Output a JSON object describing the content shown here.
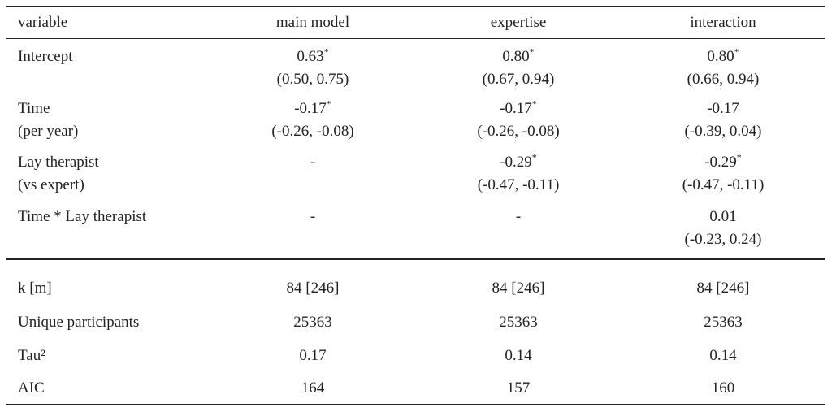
{
  "table": {
    "header": [
      "variable",
      "main model",
      "expertise",
      "interaction"
    ],
    "rows": [
      {
        "label": [
          "Intercept"
        ],
        "cells": [
          [
            "0.63*",
            "(0.50, 0.75)"
          ],
          [
            "0.80*",
            "(0.67, 0.94)"
          ],
          [
            "0.80*",
            "(0.66, 0.94)"
          ]
        ]
      },
      {
        "label": [
          "Time",
          "(per year)"
        ],
        "cells": [
          [
            "-0.17*",
            "(-0.26, -0.08)"
          ],
          [
            "-0.17*",
            "(-0.26, -0.08)"
          ],
          [
            "-0.17",
            "(-0.39, 0.04)"
          ]
        ]
      },
      {
        "label": [
          "Lay therapist",
          "(vs expert)"
        ],
        "cells": [
          [
            "-"
          ],
          [
            "-0.29*",
            "(-0.47, -0.11)"
          ],
          [
            "-0.29*",
            "(-0.47, -0.11)"
          ]
        ]
      },
      {
        "label": [
          "Time * Lay therapist"
        ],
        "cells": [
          [
            "-"
          ],
          [
            "-"
          ],
          [
            "0.01",
            "(-0.23, 0.24)"
          ]
        ]
      }
    ],
    "stats": [
      {
        "label": "k [m]",
        "values": [
          "84 [246]",
          "84 [246]",
          "84 [246]"
        ]
      },
      {
        "label": "Unique participants",
        "values": [
          "25363",
          "25363",
          "25363"
        ]
      },
      {
        "label": "Tau²",
        "values": [
          "0.17",
          "0.14",
          "0.14"
        ]
      },
      {
        "label": "AIC",
        "values": [
          "164",
          "157",
          "160"
        ]
      }
    ]
  }
}
